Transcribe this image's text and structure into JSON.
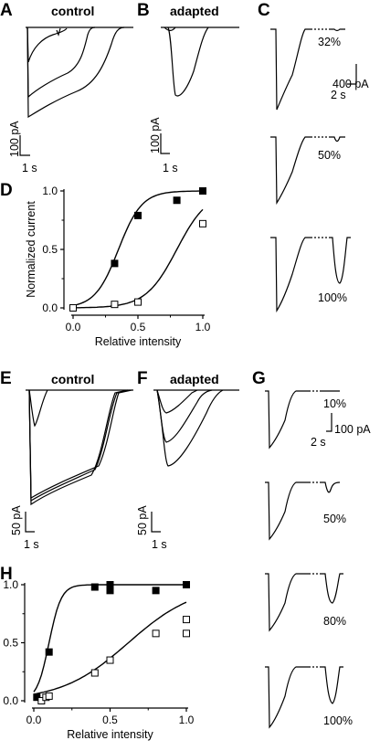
{
  "panels": {
    "A": {
      "letter": "A",
      "title": "control",
      "scale_y": "100 pA",
      "scale_x": "1 s"
    },
    "B": {
      "letter": "B",
      "title": "adapted",
      "scale_y": "100 pA",
      "scale_x": "1 s"
    },
    "C": {
      "letter": "C",
      "scale_y": "400 pA",
      "scale_x": "2 s",
      "labels": [
        "32%",
        "50%",
        "100%"
      ]
    },
    "D": {
      "letter": "D"
    },
    "E": {
      "letter": "E",
      "title": "control",
      "scale_y": "50 pA",
      "scale_x": "1 s"
    },
    "F": {
      "letter": "F",
      "title": "adapted",
      "scale_y": "50 pA",
      "scale_x": "1 s"
    },
    "G": {
      "letter": "G",
      "scale_y": "100 pA",
      "scale_x": "2 s",
      "labels": [
        "10%",
        "50%",
        "80%",
        "100%"
      ]
    },
    "H": {
      "letter": "H"
    }
  },
  "colors": {
    "trace": "#000000",
    "filled_marker": "#000000",
    "open_marker": "#ffffff"
  },
  "chart_data": [
    {
      "panel": "D",
      "type": "scatter",
      "xlabel": "Relative intensity",
      "ylabel": "Normalized current",
      "xlim": [
        0,
        1.0
      ],
      "ylim": [
        0,
        1.0
      ],
      "xticks": [
        "0.0",
        "0.5",
        "1.0"
      ],
      "yticks": [
        "0.0",
        "0.5",
        "1.0"
      ],
      "series": [
        {
          "marker": "filled-square",
          "x": [
            0,
            0.32,
            0.5,
            0.8,
            1.0
          ],
          "y": [
            0.0,
            0.38,
            0.79,
            0.92,
            1.0
          ],
          "fit_midpoint": 0.35,
          "fit_slope": 0.09
        },
        {
          "marker": "open-square",
          "x": [
            0,
            0.32,
            0.5,
            1.0
          ],
          "y": [
            0.0,
            0.03,
            0.05,
            0.72
          ],
          "fit_midpoint": 0.8,
          "fit_slope": 0.12
        }
      ]
    },
    {
      "panel": "H",
      "type": "scatter",
      "xlabel": "Relative intensity",
      "ylabel": "Normalized current",
      "xlim": [
        0,
        1.0
      ],
      "ylim": [
        0,
        1.0
      ],
      "xticks": [
        "0.0",
        "0.5",
        "1.0"
      ],
      "yticks": [
        "0.0",
        "0.5",
        "1.0"
      ],
      "series": [
        {
          "marker": "filled-square",
          "x": [
            0.02,
            0.1,
            0.4,
            0.5,
            0.5,
            0.8,
            1.0
          ],
          "y": [
            0.03,
            0.42,
            0.98,
            0.95,
            1.0,
            0.95,
            1.0
          ],
          "fit_midpoint": 0.1,
          "fit_slope": 0.04
        },
        {
          "marker": "open-square",
          "x": [
            0.05,
            0.08,
            0.1,
            0.4,
            0.5,
            0.8,
            1.0,
            1.0
          ],
          "y": [
            0.0,
            0.03,
            0.04,
            0.24,
            0.35,
            0.58,
            0.58,
            0.7
          ],
          "fit_midpoint": 0.62,
          "fit_slope": 0.22
        }
      ]
    }
  ]
}
